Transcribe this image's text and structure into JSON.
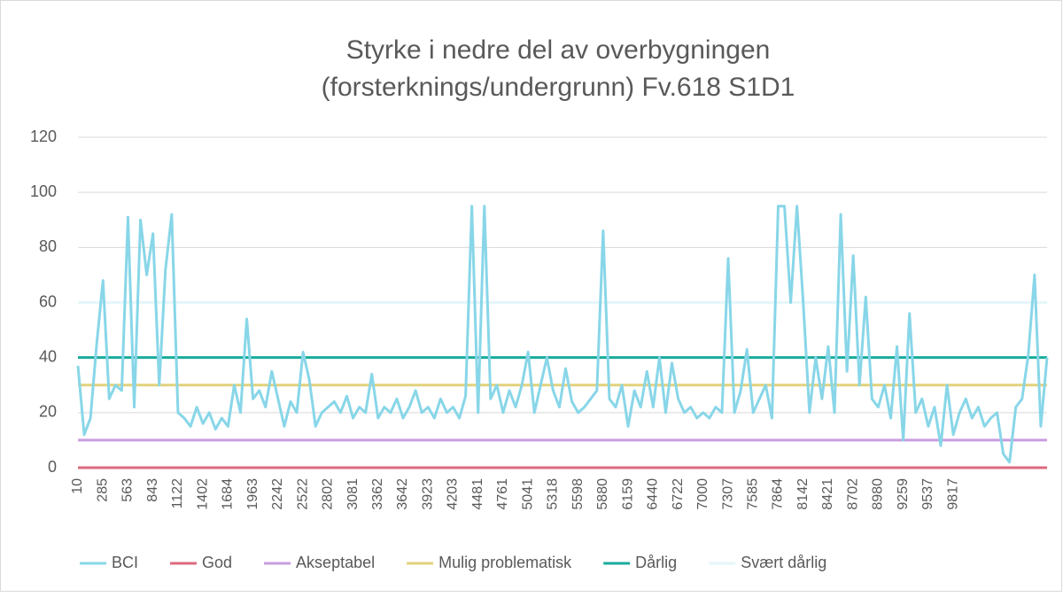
{
  "chart_data": {
    "type": "line",
    "title": [
      "Styrke i nedre del av overbygningen",
      "(forsterknings/undergrunn) Fv.618 S1D1"
    ],
    "categories": [
      "10",
      null,
      null,
      null,
      "285",
      null,
      null,
      null,
      "563",
      null,
      null,
      null,
      "843",
      null,
      null,
      null,
      "1122",
      null,
      null,
      null,
      "1402",
      null,
      null,
      null,
      "1684",
      null,
      null,
      null,
      "1963",
      null,
      null,
      null,
      "2242",
      null,
      null,
      null,
      "2522",
      null,
      null,
      null,
      "2802",
      null,
      null,
      null,
      "3081",
      null,
      null,
      null,
      "3362",
      null,
      null,
      null,
      "3642",
      null,
      null,
      null,
      "3923",
      null,
      null,
      null,
      "4203",
      null,
      null,
      null,
      "4481",
      null,
      null,
      null,
      "4761",
      null,
      null,
      null,
      "5041",
      null,
      null,
      null,
      "5318",
      null,
      null,
      null,
      "5598",
      null,
      null,
      null,
      "5880",
      null,
      null,
      null,
      "6159",
      null,
      null,
      null,
      "6440",
      null,
      null,
      null,
      "6722",
      null,
      null,
      null,
      "7000",
      null,
      null,
      null,
      "7307",
      null,
      null,
      null,
      "7585",
      null,
      null,
      null,
      "7864",
      null,
      null,
      null,
      "8142",
      null,
      null,
      null,
      "8421",
      null,
      null,
      null,
      "8702",
      null,
      null,
      null,
      "8980",
      null,
      null,
      null,
      "9259",
      null,
      null,
      null,
      "9537",
      null,
      null,
      null,
      "9817",
      null,
      null,
      null,
      null,
      null,
      null,
      null,
      null,
      null,
      null,
      null,
      null,
      null,
      null,
      null
    ],
    "series": [
      {
        "name": "BCI",
        "color": "#88d6e8",
        "values": [
          37,
          12,
          18,
          45,
          68,
          25,
          30,
          28,
          91,
          22,
          90,
          70,
          85,
          30,
          72,
          92,
          20,
          18,
          15,
          22,
          16,
          20,
          14,
          18,
          15,
          30,
          20,
          54,
          25,
          28,
          22,
          35,
          25,
          15,
          24,
          20,
          42,
          32,
          15,
          20,
          22,
          24,
          20,
          26,
          18,
          22,
          20,
          34,
          18,
          22,
          20,
          25,
          18,
          22,
          28,
          20,
          22,
          18,
          25,
          20,
          22,
          18,
          26,
          95,
          20,
          95,
          25,
          30,
          20,
          28,
          22,
          30,
          42,
          20,
          30,
          40,
          28,
          22,
          36,
          24,
          20,
          22,
          25,
          28,
          86,
          25,
          22,
          30,
          15,
          28,
          22,
          35,
          22,
          40,
          20,
          38,
          25,
          20,
          22,
          18,
          20,
          18,
          22,
          20,
          76,
          20,
          28,
          43,
          20,
          25,
          30,
          18,
          95,
          95,
          60,
          95,
          60,
          20,
          40,
          25,
          44,
          20,
          92,
          35,
          77,
          30,
          62,
          25,
          22,
          30,
          18,
          44,
          10,
          56,
          20,
          25,
          15,
          22,
          8,
          30,
          12,
          20,
          25,
          18,
          22,
          15,
          18,
          20,
          5,
          2,
          22,
          25,
          41,
          70,
          15,
          40
        ]
      }
    ],
    "thresholds": [
      {
        "name": "God",
        "color": "#dc6a7e",
        "value": 0
      },
      {
        "name": "Akseptabel",
        "color": "#c89ddf",
        "value": 10
      },
      {
        "name": "Mulig problematisk",
        "color": "#e2d27c",
        "value": 30
      },
      {
        "name": "Dårlig",
        "color": "#19ab9c",
        "value": 40
      },
      {
        "name": "Svært dårlig",
        "color": "#e6f6fa",
        "value": 60
      }
    ],
    "ylim": [
      0,
      120
    ],
    "yticks": [
      0,
      20,
      40,
      60,
      80,
      100,
      120
    ],
    "grid": true
  }
}
